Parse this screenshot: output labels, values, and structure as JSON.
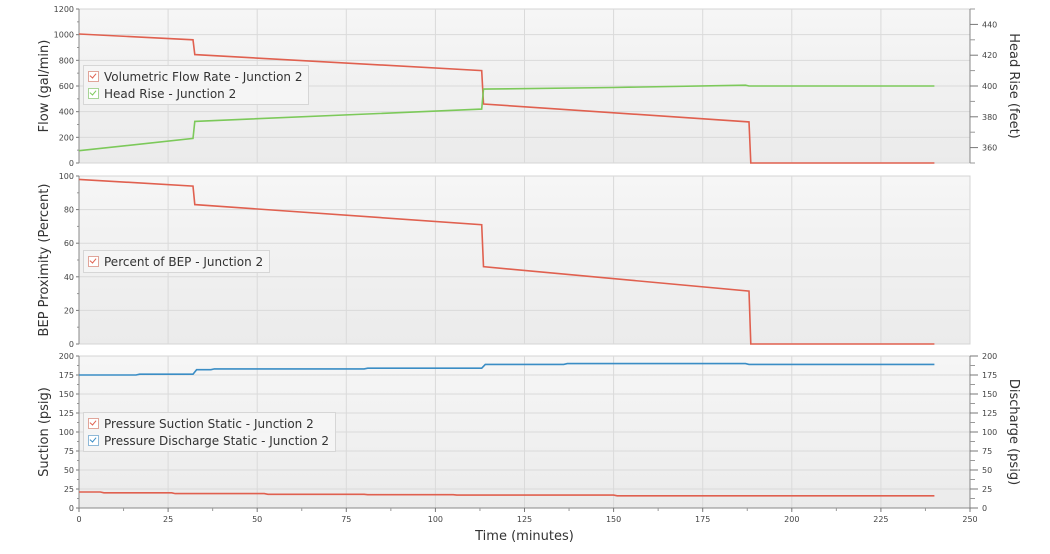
{
  "chart_data": [
    {
      "type": "line",
      "panel": "top",
      "ylabel": "Flow (gal/min)",
      "y2label": "Head Rise (feet)",
      "ylim": [
        0,
        1200
      ],
      "y2lim": [
        350,
        450
      ],
      "yticks": [
        0,
        200,
        400,
        600,
        800,
        1000,
        1200
      ],
      "y2ticks": [
        360,
        380,
        400,
        420,
        440
      ],
      "grid": true,
      "legend_position": "upper-left inside",
      "series": [
        {
          "name": "Volumetric Flow Rate - Junction 2",
          "axis": "left",
          "color": "#e0604f",
          "x": [
            0,
            32,
            32.5,
            113,
            113.5,
            188,
            188.5,
            240
          ],
          "y": [
            1005,
            960,
            845,
            720,
            460,
            320,
            0,
            0
          ]
        },
        {
          "name": "Head Rise - Junction 2",
          "axis": "right",
          "color": "#7cc95a",
          "x": [
            0,
            32,
            32.5,
            113,
            113.5,
            150,
            187,
            188,
            240
          ],
          "y": [
            358,
            366,
            377,
            385,
            398,
            399,
            400.5,
            400,
            400
          ]
        }
      ]
    },
    {
      "type": "line",
      "panel": "middle",
      "ylabel": "BEP Proximity (Percent)",
      "ylim": [
        0,
        100
      ],
      "yticks": [
        0,
        20,
        40,
        60,
        80,
        100
      ],
      "grid": true,
      "legend_position": "middle-left inside",
      "series": [
        {
          "name": "Percent of BEP - Junction 2",
          "axis": "left",
          "color": "#e0604f",
          "x": [
            0,
            32,
            32.5,
            113,
            113.5,
            188,
            188.5,
            240
          ],
          "y": [
            98,
            94,
            83,
            71,
            46,
            31.5,
            0,
            0
          ]
        }
      ]
    },
    {
      "type": "line",
      "panel": "bottom",
      "xlabel": "Time (minutes)",
      "ylabel": "Suction (psig)",
      "y2label": "Discharge (psig)",
      "xlim": [
        0,
        250
      ],
      "xticks": [
        0,
        25,
        50,
        75,
        100,
        125,
        150,
        175,
        200,
        225,
        250
      ],
      "ylim": [
        0,
        200
      ],
      "y2lim": [
        0,
        200
      ],
      "yticks": [
        0,
        25,
        50,
        75,
        100,
        125,
        150,
        175,
        200
      ],
      "y2ticks": [
        0,
        25,
        50,
        75,
        100,
        125,
        150,
        175,
        200
      ],
      "grid": true,
      "legend_position": "middle-left inside",
      "series": [
        {
          "name": "Pressure Suction Static - Junction 2",
          "axis": "left",
          "color": "#e0604f",
          "x": [
            0,
            6,
            7,
            26,
            27,
            52,
            53,
            80,
            81,
            105,
            106,
            150,
            151,
            240
          ],
          "y": [
            21,
            21,
            20,
            20,
            19,
            19,
            18,
            18,
            17.5,
            17.5,
            17,
            17,
            16,
            16
          ]
        },
        {
          "name": "Pressure Discharge Static - Junction 2",
          "axis": "right",
          "color": "#3a8dc5",
          "x": [
            0,
            16,
            17,
            32,
            33,
            37,
            38,
            80,
            81,
            113,
            114,
            136,
            137,
            187,
            188,
            240
          ],
          "y": [
            175,
            175,
            176,
            176,
            182,
            182,
            183,
            183,
            184,
            184,
            189,
            189,
            190,
            190,
            189,
            189
          ]
        }
      ]
    }
  ],
  "legends": {
    "top": [
      {
        "label": "Volumetric Flow Rate - Junction 2",
        "color": "#e0604f"
      },
      {
        "label": "Head Rise - Junction 2",
        "color": "#7cc95a"
      }
    ],
    "middle": [
      {
        "label": "Percent of BEP - Junction 2",
        "color": "#e0604f"
      }
    ],
    "bottom": [
      {
        "label": "Pressure Suction Static - Junction 2",
        "color": "#e0604f"
      },
      {
        "label": "Pressure Discharge Static - Junction 2",
        "color": "#3a8dc5"
      }
    ]
  },
  "axes": {
    "top_left_label": "Flow (gal/min)",
    "top_right_label": "Head Rise (feet)",
    "middle_left_label": "BEP Proximity (Percent)",
    "bottom_left_label": "Suction (psig)",
    "bottom_right_label": "Discharge (psig)",
    "x_label": "Time (minutes)"
  }
}
